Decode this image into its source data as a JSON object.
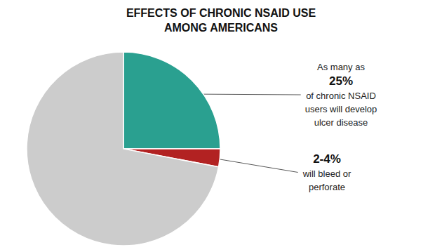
{
  "chart_data": {
    "type": "pie",
    "title": "EFFECTS OF CHRONIC NSAID USE\nAMONG AMERICANS",
    "values": [
      25,
      3,
      72
    ],
    "colors": [
      "#2aa090",
      "#b22222",
      "#cccccc"
    ],
    "annotations": [
      {
        "lead": "As many as",
        "label": "25%",
        "text": "of chronic NSAID\nusers will develop\nulcer disease"
      },
      {
        "label": "2-4%",
        "text": "will bleed or\nperforate"
      }
    ]
  }
}
